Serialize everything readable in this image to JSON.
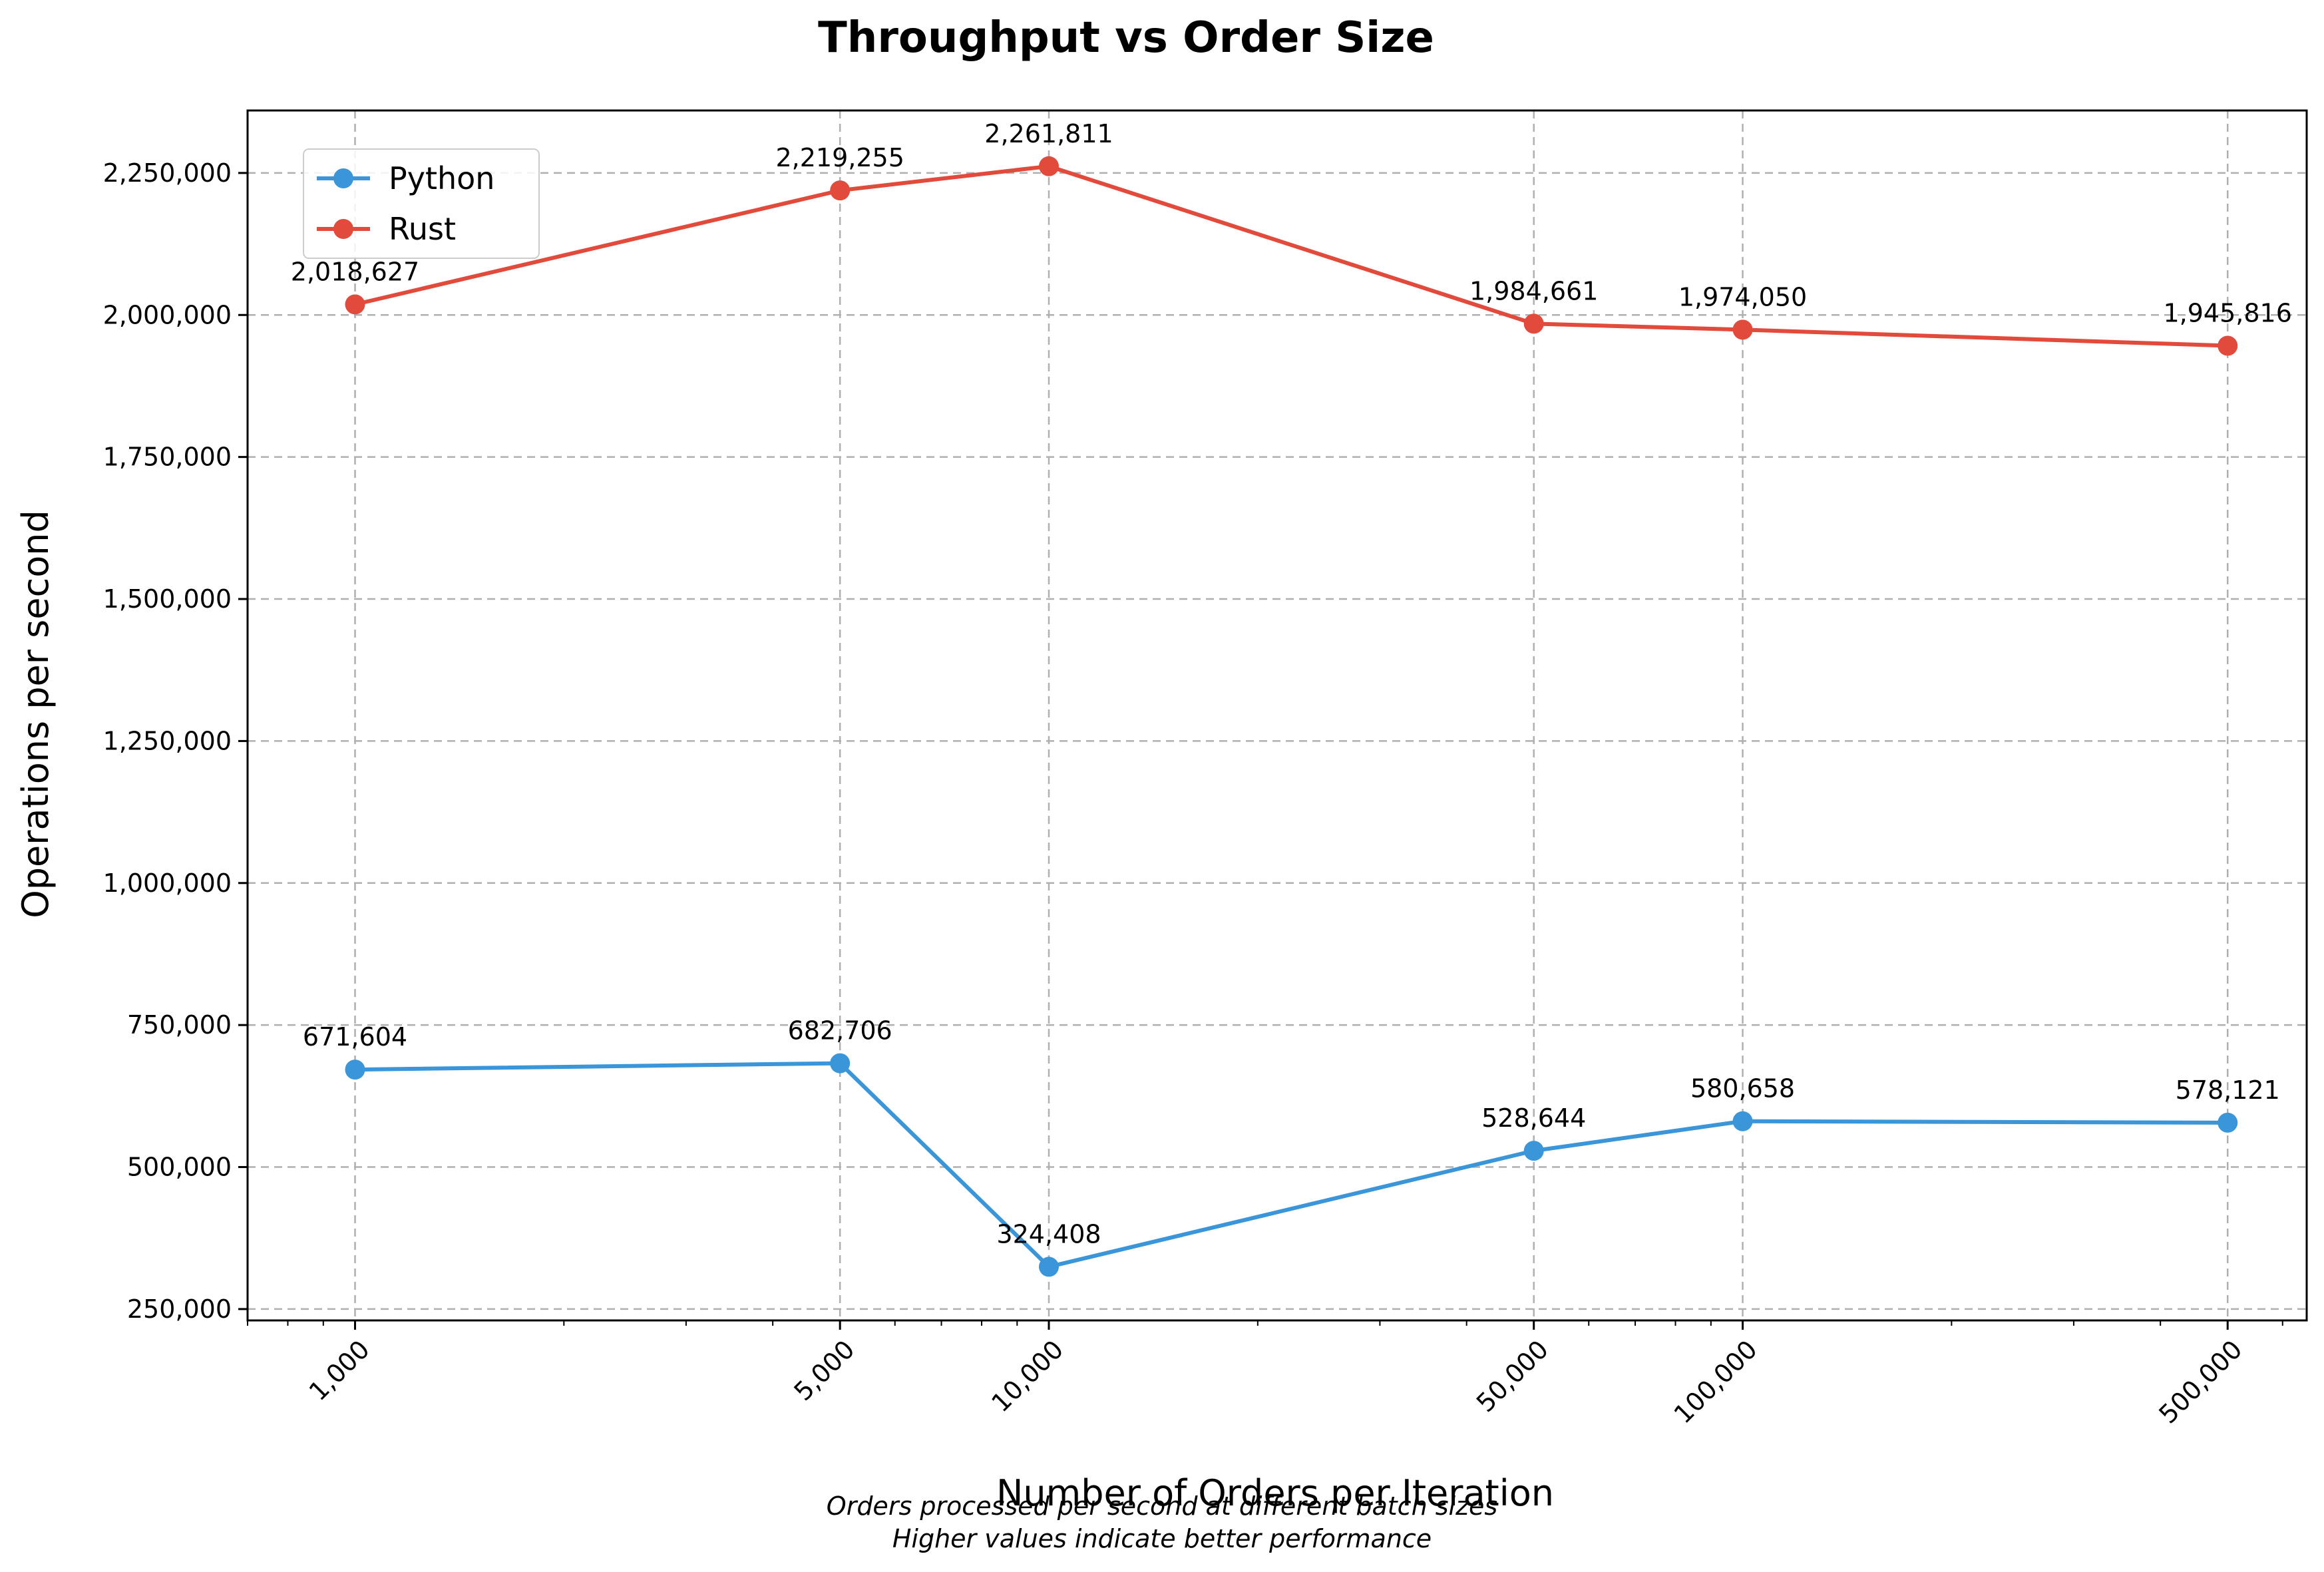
{
  "chart_data": {
    "type": "line",
    "title": "Throughput vs Order Size",
    "xlabel": "Number of Orders per Iteration",
    "ylabel": "Operations per second",
    "x_scale": "log",
    "x": [
      1000,
      5000,
      10000,
      50000,
      100000,
      500000
    ],
    "x_tick_labels": [
      "1,000",
      "5,000",
      "10,000",
      "50,000",
      "100,000",
      "500,000"
    ],
    "xlim": [
      700,
      650000
    ],
    "ylim": [
      230000,
      2360000
    ],
    "y_ticks": [
      250000,
      500000,
      750000,
      1000000,
      1250000,
      1500000,
      1750000,
      2000000,
      2250000
    ],
    "y_tick_labels": [
      "250,000",
      "500,000",
      "750,000",
      "1,000,000",
      "1,250,000",
      "1,500,000",
      "1,750,000",
      "2,000,000",
      "2,250,000"
    ],
    "grid": true,
    "legend_position": "top-left",
    "series": [
      {
        "name": "Python",
        "color": "#3a96d9",
        "values": [
          671604,
          682706,
          324408,
          528644,
          580658,
          578121
        ],
        "labels": [
          "671,604",
          "682,706",
          "324,408",
          "528,644",
          "580,658",
          "578,121"
        ]
      },
      {
        "name": "Rust",
        "color": "#e24a3b",
        "values": [
          2018627,
          2219255,
          2261811,
          1984661,
          1974050,
          1945816
        ],
        "labels": [
          "2,018,627",
          "2,219,255",
          "2,261,811",
          "1,984,661",
          "1,974,050",
          "1,945,816"
        ]
      }
    ],
    "caption_lines": [
      "Orders processed per second at different batch sizes",
      "Higher values indicate better performance"
    ]
  }
}
